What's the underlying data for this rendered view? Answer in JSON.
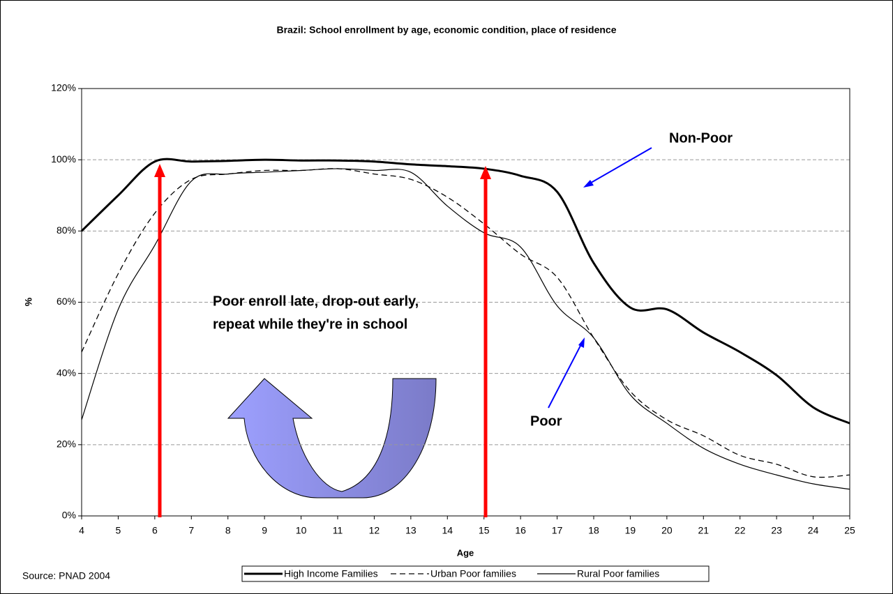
{
  "chart_data": {
    "type": "line",
    "title": "Brazil: School enrollment by age, economic condition, place of residence",
    "x_label": "Age",
    "y_label": "%",
    "source": "Source: PNAD 2004",
    "x": [
      4,
      5,
      6,
      7,
      8,
      9,
      10,
      11,
      12,
      13,
      14,
      15,
      16,
      17,
      18,
      19,
      20,
      21,
      22,
      23,
      24,
      25
    ],
    "xlim": [
      4,
      25
    ],
    "xticks": [
      4,
      5,
      6,
      7,
      8,
      9,
      10,
      11,
      12,
      13,
      14,
      15,
      16,
      17,
      18,
      19,
      20,
      21,
      22,
      23,
      24,
      25
    ],
    "ylim": [
      0,
      120
    ],
    "yticks": [
      {
        "value": 0,
        "label": "0%"
      },
      {
        "value": 20,
        "label": "20%"
      },
      {
        "value": 40,
        "label": "40%"
      },
      {
        "value": 60,
        "label": "60%"
      },
      {
        "value": 80,
        "label": "80%"
      },
      {
        "value": 100,
        "label": "100%"
      },
      {
        "value": 120,
        "label": "120%"
      }
    ],
    "grid": true,
    "legend": "bottom",
    "series": [
      {
        "name": "High Income Families",
        "color": "#000000",
        "style": "thick",
        "values": [
          80,
          90,
          99.5,
          99.5,
          99.7,
          100,
          99.8,
          99.8,
          99.5,
          98.7,
          98.2,
          97.5,
          95.5,
          91,
          71,
          58.5,
          58,
          51.5,
          46,
          39.5,
          30.5,
          26
        ]
      },
      {
        "name": "Urban Poor families",
        "color": "#000000",
        "style": "dashed",
        "values": [
          46,
          68,
          85,
          94.5,
          96,
          97,
          97,
          97.5,
          96,
          94.5,
          89.5,
          82,
          73.5,
          67,
          50,
          35,
          27,
          22.5,
          17,
          14.5,
          11,
          11.5
        ]
      },
      {
        "name": "Rural Poor families",
        "color": "#000000",
        "style": "thin",
        "values": [
          27,
          58,
          76,
          94,
          96,
          96.5,
          97,
          97.5,
          97,
          96.5,
          87,
          79.5,
          75.5,
          59,
          50,
          34,
          26,
          19,
          14.5,
          11.5,
          9,
          7.5
        ]
      }
    ],
    "annotations": [
      "Non-Poor",
      "Poor",
      "Poor enroll late, drop-out early,",
      "repeat while they're in school"
    ]
  }
}
